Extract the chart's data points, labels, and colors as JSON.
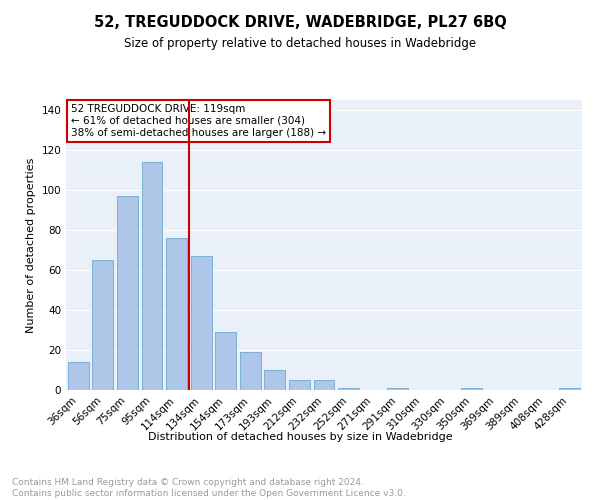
{
  "title": "52, TREGUDDOCK DRIVE, WADEBRIDGE, PL27 6BQ",
  "subtitle": "Size of property relative to detached houses in Wadebridge",
  "xlabel": "Distribution of detached houses by size in Wadebridge",
  "ylabel": "Number of detached properties",
  "footnote": "Contains HM Land Registry data © Crown copyright and database right 2024.\nContains public sector information licensed under the Open Government Licence v3.0.",
  "categories": [
    "36sqm",
    "56sqm",
    "75sqm",
    "95sqm",
    "114sqm",
    "134sqm",
    "154sqm",
    "173sqm",
    "193sqm",
    "212sqm",
    "232sqm",
    "252sqm",
    "271sqm",
    "291sqm",
    "310sqm",
    "330sqm",
    "350sqm",
    "369sqm",
    "389sqm",
    "408sqm",
    "428sqm"
  ],
  "values": [
    14,
    65,
    97,
    114,
    76,
    67,
    29,
    19,
    10,
    5,
    5,
    1,
    0,
    1,
    0,
    0,
    1,
    0,
    0,
    0,
    1
  ],
  "bar_color": "#aec6e8",
  "bar_edge_color": "#7bafd4",
  "vline_color": "#cc0000",
  "annotation_text": "52 TREGUDDOCK DRIVE: 119sqm\n← 61% of detached houses are smaller (304)\n38% of semi-detached houses are larger (188) →",
  "annotation_box_color": "#ffffff",
  "annotation_box_edge_color": "#cc0000",
  "ylim": [
    0,
    145
  ],
  "yticks": [
    0,
    20,
    40,
    60,
    80,
    100,
    120,
    140
  ],
  "background_color": "#eaf0f8",
  "grid_color": "#ffffff",
  "title_fontsize": 10.5,
  "subtitle_fontsize": 8.5,
  "axis_label_fontsize": 8,
  "tick_fontsize": 7.5,
  "annotation_fontsize": 7.5,
  "footnote_fontsize": 6.5
}
